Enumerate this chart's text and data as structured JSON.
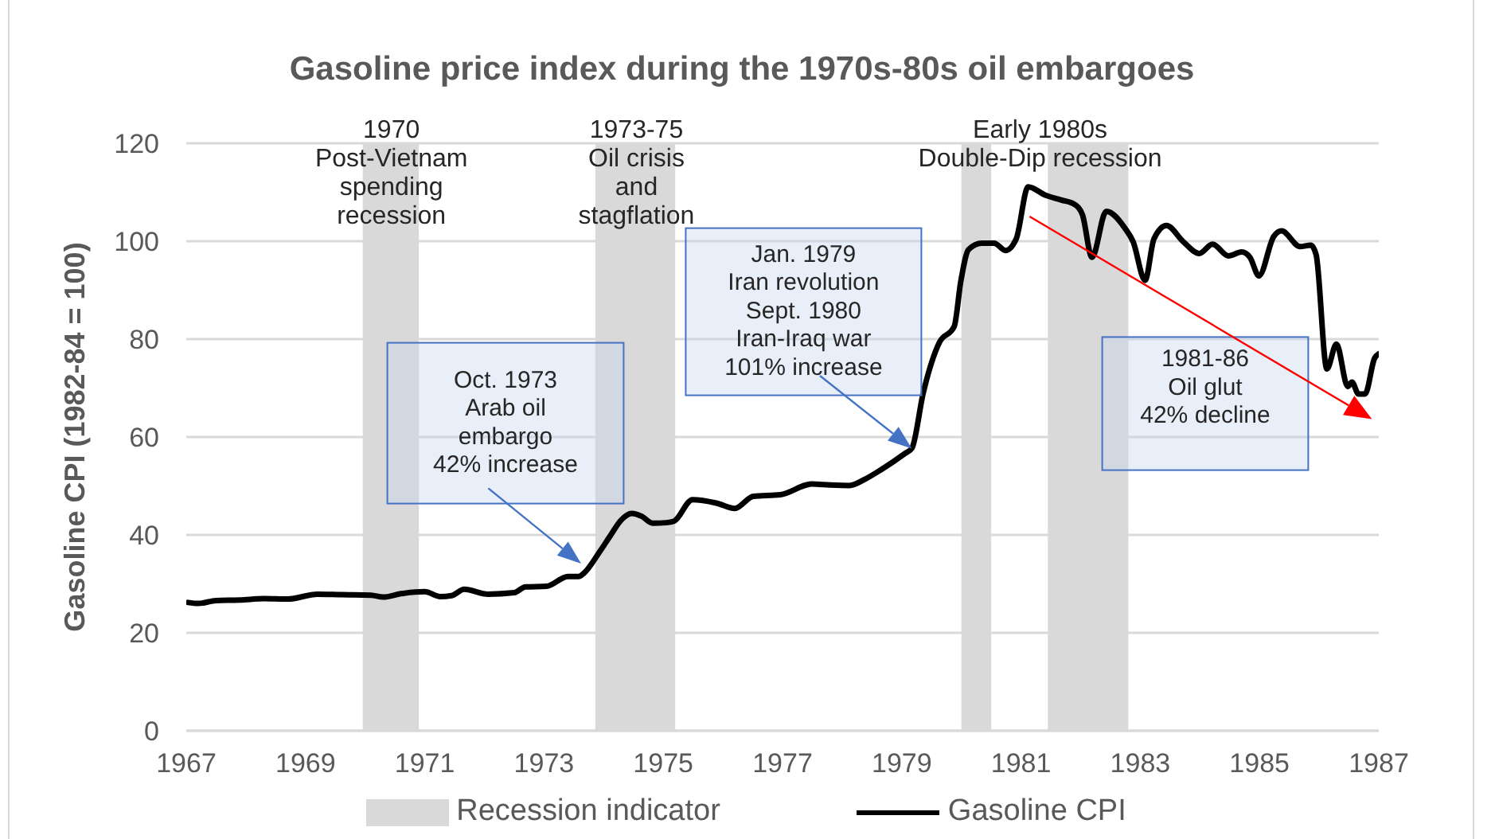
{
  "chart_data": {
    "type": "line",
    "title": "Gasoline price index during the 1970s-80s oil embargoes",
    "ylabel": "Gasoline CPI (1982-84 = 100)",
    "xlim": [
      1967,
      1987
    ],
    "xticks": [
      1967,
      1969,
      1971,
      1973,
      1975,
      1977,
      1979,
      1981,
      1983,
      1985,
      1987
    ],
    "ylim": [
      0,
      120
    ],
    "yticks": [
      0,
      20,
      40,
      60,
      80,
      100,
      120
    ],
    "grid": "y",
    "legend": "bottom",
    "series": [
      {
        "name": "Recession indicator",
        "type": "area",
        "color": "#d9d9d9",
        "x": [
          1967,
          1969.96,
          1969.96,
          1970.9,
          1970.9,
          1973.86,
          1973.86,
          1975.2,
          1975.2,
          1980.0,
          1980.0,
          1980.5,
          1980.5,
          1981.45,
          1981.45,
          1982.8,
          1982.8,
          1987
        ],
        "values": [
          0,
          0,
          120,
          120,
          0,
          0,
          120,
          120,
          0,
          0,
          120,
          120,
          0,
          0,
          120,
          120,
          0,
          0
        ]
      },
      {
        "name": "Gasoline CPI",
        "color": "#000000",
        "x": [
          1967.03,
          1967.2,
          1967.5,
          1967.9,
          1968.3,
          1968.7,
          1969.2,
          1969.6,
          1970.1,
          1970.3,
          1970.6,
          1971.0,
          1971.26,
          1971.45,
          1971.66,
          1972.06,
          1972.5,
          1972.69,
          1973.04,
          1973.4,
          1973.58,
          1973.67,
          1973.93,
          1974.11,
          1974.29,
          1974.47,
          1974.64,
          1974.82,
          1975.05,
          1975.18,
          1975.49,
          1975.89,
          1976.2,
          1976.51,
          1976.96,
          1977.49,
          1977.8,
          1978.12,
          1978.4,
          1978.65,
          1979.05,
          1979.17,
          1979.36,
          1979.63,
          1979.88,
          1979.99,
          1980.12,
          1980.34,
          1980.55,
          1980.74,
          1980.92,
          1981.12,
          1981.41,
          1981.68,
          1981.9,
          1982.03,
          1982.19,
          1982.43,
          1982.74,
          1982.88,
          1983.08,
          1983.23,
          1983.44,
          1983.72,
          1983.99,
          1984.21,
          1984.48,
          1984.7,
          1984.84,
          1984.99,
          1985.24,
          1985.37,
          1985.68,
          1985.86,
          1985.95,
          1986.13,
          1986.29,
          1986.48,
          1986.55,
          1986.66,
          1986.77,
          1986.93,
          1987.0
        ],
        "values": [
          26.2,
          26.0,
          26.6,
          26.7,
          27.0,
          26.9,
          27.9,
          27.8,
          27.7,
          27.3,
          28.0,
          28.4,
          27.4,
          27.6,
          28.9,
          27.9,
          28.2,
          29.4,
          29.5,
          31.5,
          31.5,
          32.2,
          36.5,
          39.8,
          43.0,
          44.4,
          43.8,
          42.4,
          42.5,
          42.8,
          47.2,
          46.5,
          45.4,
          47.9,
          48.2,
          50.4,
          50.2,
          50.1,
          51.5,
          53.3,
          56.6,
          57.7,
          69.0,
          79.3,
          82.6,
          91.8,
          98.3,
          99.6,
          99.6,
          98.1,
          100.5,
          111.1,
          109.4,
          108.4,
          107.5,
          105.4,
          96.7,
          106.1,
          102.7,
          99.9,
          92.0,
          100.5,
          103.2,
          99.9,
          97.5,
          99.4,
          97.0,
          97.8,
          96.7,
          92.9,
          101.0,
          102.1,
          98.9,
          99.2,
          97.2,
          73.9,
          79.0,
          70.3,
          71.2,
          68.8,
          68.8,
          76.1,
          77.0
        ]
      }
    ],
    "annotations": [
      {
        "text": "1970\nPost-Vietnam\nspending\nrecession",
        "x": 1970.44,
        "y": 120
      },
      {
        "text": "1973-75\nOil crisis\nand\nstagflation",
        "x": 1974.55,
        "y": 120
      },
      {
        "text": "Early 1980s\nDouble-Dip recession",
        "x": 1981.32,
        "y": 120
      },
      "Oct. 1973\nArab oil\nembargo\n42% increase",
      "Jan. 1979\nIran revolution\nSept. 1980\nIran-Iraq war\n101% increase",
      "1981-86\nOil glut\n42% decline"
    ]
  }
}
